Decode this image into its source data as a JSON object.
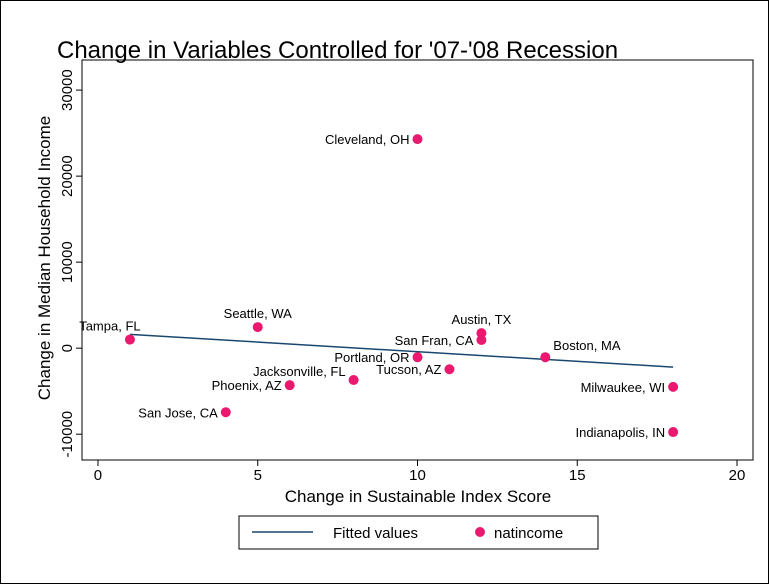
{
  "chart_data": {
    "type": "scatter",
    "title": "Change in Variables Controlled for '07-'08 Recession",
    "xlabel": "Change in Sustainable Index Score",
    "ylabel": "Change in Median Household Income",
    "xlim": [
      -0.5,
      20.5
    ],
    "ylim": [
      -13000,
      33500
    ],
    "xticks": [
      0,
      5,
      10,
      15,
      20
    ],
    "yticks": [
      -10000,
      0,
      10000,
      20000,
      30000
    ],
    "series": [
      {
        "name": "Fitted values",
        "type": "line",
        "color": "#1a476f",
        "x": [
          1,
          18
        ],
        "values": [
          1600,
          -2200
        ]
      },
      {
        "name": "natincome",
        "type": "scatter",
        "color": "#e8196e",
        "x": [
          1,
          5,
          10,
          12,
          12,
          10,
          14,
          11,
          8,
          6,
          18,
          4,
          18
        ],
        "values": [
          1000,
          2450,
          24300,
          1750,
          950,
          -1050,
          -1050,
          -2450,
          -3700,
          -4300,
          -4500,
          -7450,
          -9750
        ],
        "point_labels": [
          "Tampa, FL",
          "Seattle, WA",
          "Cleveland, OH",
          "Austin, TX",
          "San Fran, CA",
          "Portland, OR",
          "Boston, MA",
          "Tucson, AZ",
          "Jacksonville, FL",
          "Phoenix, AZ",
          "Milwaukee, WI",
          "San Jose, CA",
          "Indianapolis, IN"
        ]
      }
    ]
  }
}
